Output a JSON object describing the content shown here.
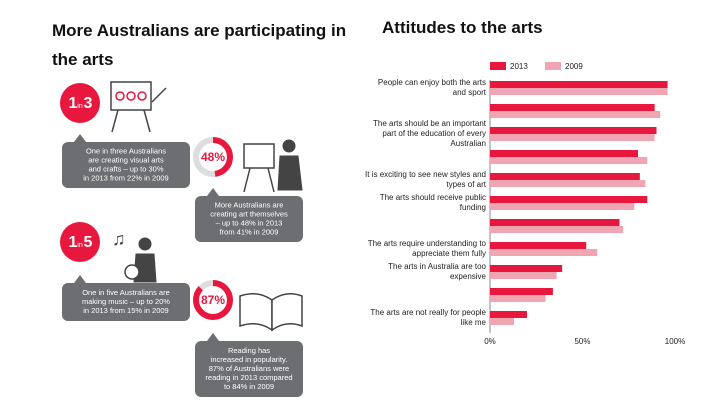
{
  "infographic": {
    "title": "More Australians are participating in the arts",
    "stat_one_in_three": [
      "1",
      "in",
      "3"
    ],
    "bubble_visual_arts": [
      "One in three Australians",
      "are creating visual arts",
      "and crafts – up to 30%",
      "in 2013 from 22% in 2009"
    ],
    "donut_create": {
      "value": 48,
      "label": "48%"
    },
    "bubble_create": [
      "More Australians are",
      "creating art themselves",
      "– up to 48% in 2013",
      "from 41% in 2009"
    ],
    "stat_one_in_five": [
      "1",
      "in",
      "5"
    ],
    "bubble_music": [
      "One in five Australians are",
      "making music – up to 20%",
      "in 2013 from 15% in 2009"
    ],
    "donut_reading": {
      "value": 87,
      "label": "87%"
    },
    "bubble_reading": [
      "Reading has",
      "increased in popularity.",
      "87% of Australians were",
      "reading in 2013 compared",
      "to 84% in 2009"
    ]
  },
  "chart_data": {
    "type": "hbar",
    "title": "Attitudes to the arts",
    "categories": [
      "People can enjoy both the arts and sport",
      null,
      "The arts should be an important part of the education of every Australian",
      null,
      "It is exciting to see new styles and types of art",
      "The arts should receive public funding",
      null,
      "The arts require understanding to appreciate them fully",
      "The arts in Australia are too expensive",
      null,
      "The arts are not really for people like me"
    ],
    "series": [
      {
        "name": "2013",
        "color": "#e8173e",
        "values": [
          96,
          89,
          90,
          80,
          81,
          85,
          70,
          52,
          39,
          34,
          20
        ]
      },
      {
        "name": "2009",
        "color": "#f0a5b3",
        "values": [
          96,
          92,
          89,
          85,
          84,
          78,
          72,
          58,
          36,
          30,
          13
        ]
      }
    ],
    "xlim": [
      0,
      100
    ],
    "xticks": [
      {
        "value": 0,
        "label": "0%"
      },
      {
        "value": 50,
        "label": "50%"
      },
      {
        "value": 100,
        "label": "100%"
      }
    ],
    "legend": "top"
  }
}
